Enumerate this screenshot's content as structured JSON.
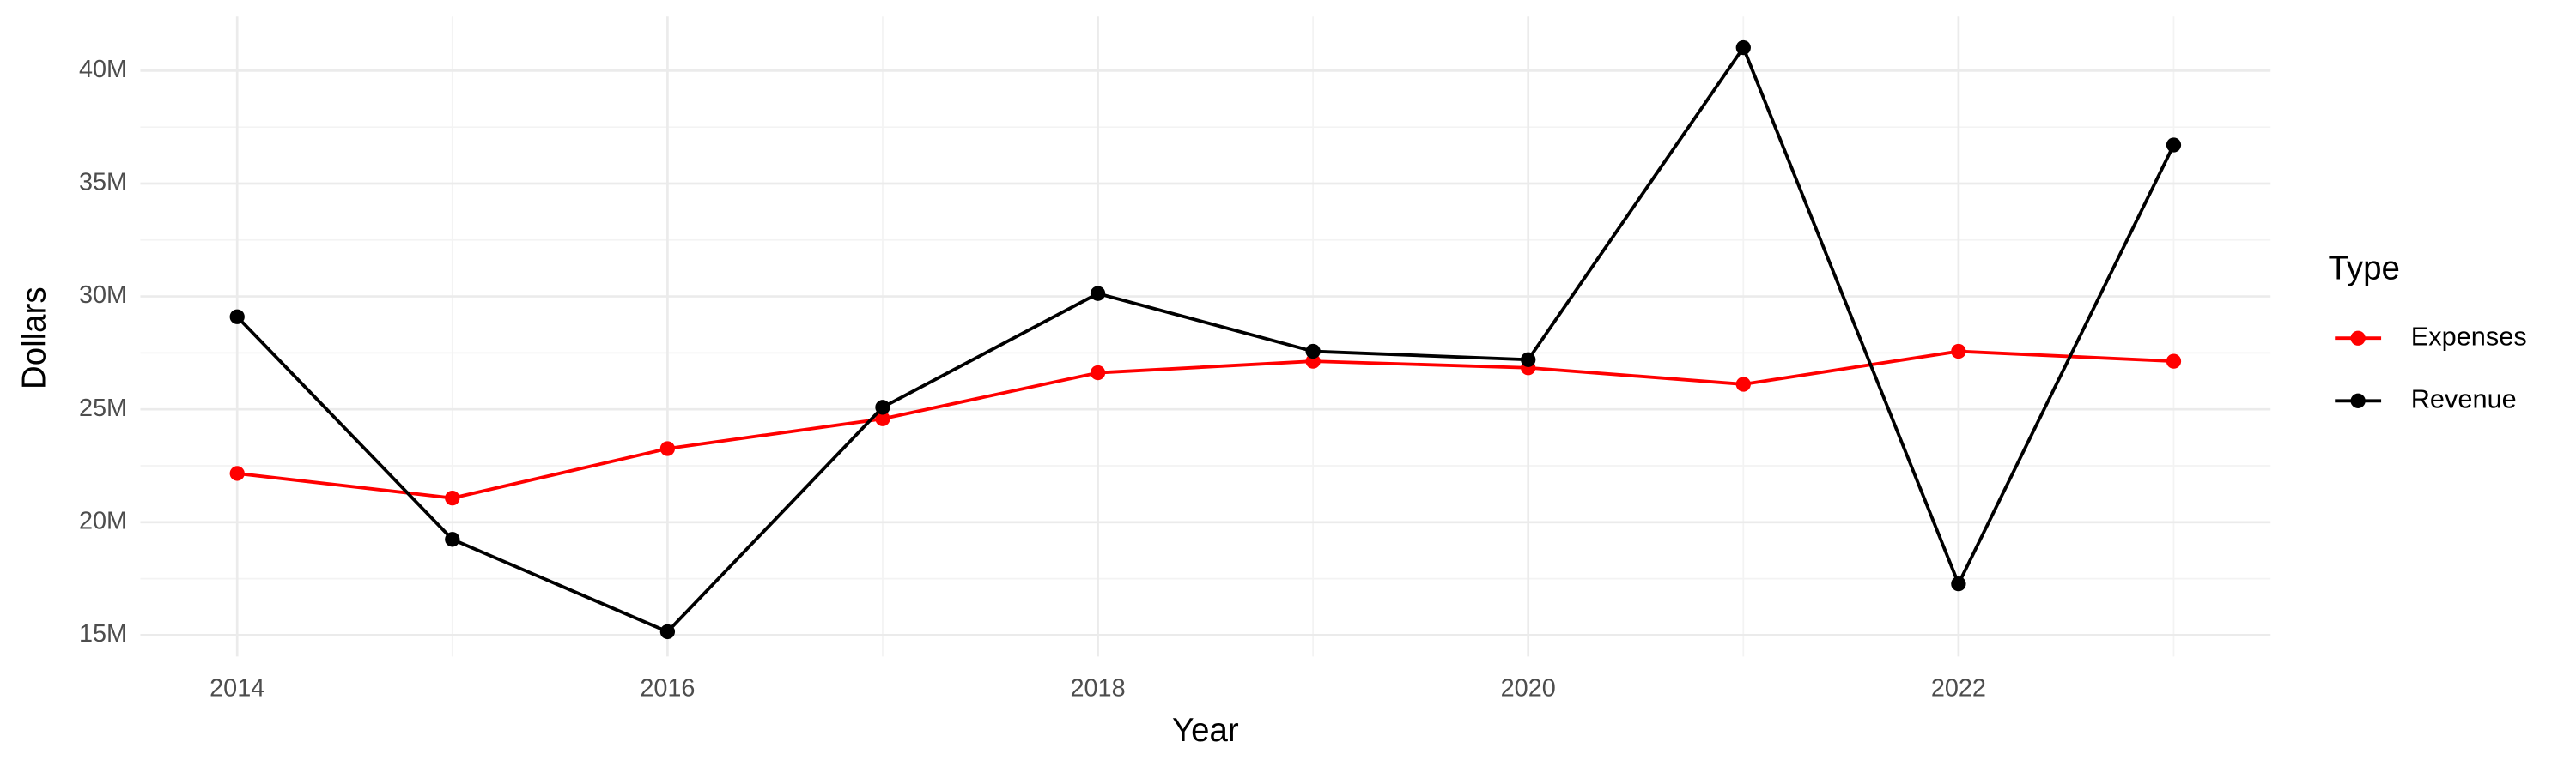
{
  "chart_data": {
    "type": "line",
    "x_label": "Year",
    "y_label": "Dollars",
    "legend_title": "Type",
    "x": [
      2014,
      2015,
      2016,
      2017,
      2018,
      2019,
      2020,
      2021,
      2022,
      2023
    ],
    "series": [
      {
        "name": "Expenses",
        "color": "#ff0000",
        "values": [
          22160000,
          21070000,
          23260000,
          24580000,
          26620000,
          27130000,
          26840000,
          26110000,
          27570000,
          27130000
        ]
      },
      {
        "name": "Revenue",
        "color": "#000000",
        "values": [
          29100000,
          19240000,
          15150000,
          25090000,
          30130000,
          27570000,
          27200000,
          41020000,
          17270000,
          36710000
        ]
      }
    ],
    "xlim": [
      2013.55,
      2023.45
    ],
    "xticks": [
      2014,
      2016,
      2018,
      2020,
      2022
    ],
    "ylim": [
      14050000,
      42400000
    ],
    "yticks": [
      {
        "value": 15000000,
        "label": "15M"
      },
      {
        "value": 20000000,
        "label": "20M"
      },
      {
        "value": 25000000,
        "label": "25M"
      },
      {
        "value": 30000000,
        "label": "30M"
      },
      {
        "value": 35000000,
        "label": "35M"
      },
      {
        "value": 40000000,
        "label": "40M"
      }
    ],
    "grid": true,
    "legend_position": "right"
  }
}
